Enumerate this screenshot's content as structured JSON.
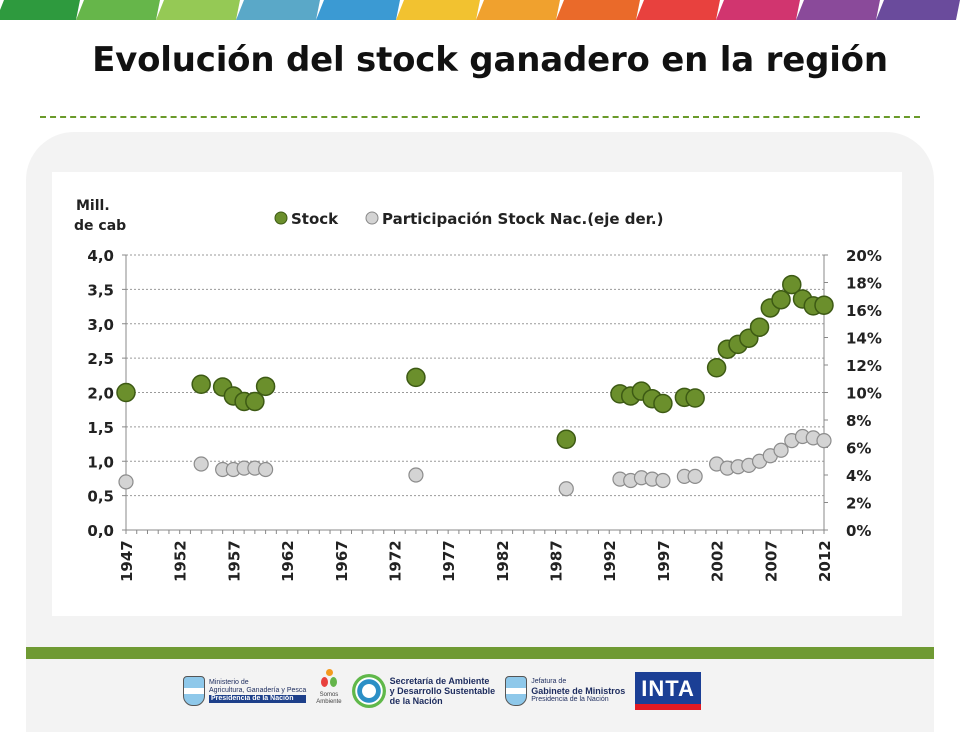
{
  "page": {
    "title": "Evolución del stock ganadero en la región",
    "stripe_colors": [
      "#2e9a3e",
      "#66b64a",
      "#95c955",
      "#5aa8c8",
      "#3b9ad3",
      "#f2c230",
      "#f0a12e",
      "#ea6a2a",
      "#e8413e",
      "#d1356f",
      "#8a4a9a",
      "#6a4b9c"
    ],
    "accent_color": "#6f9a33"
  },
  "footer": {
    "logos": [
      {
        "name": "ministerio",
        "line1": "Ministerio de",
        "line2": "Agricultura, Ganadería y Pesca",
        "line3": "Presidencia de la Nación"
      },
      {
        "name": "somos-ambiente",
        "line1": "Somos",
        "line2": "Ambiente"
      },
      {
        "name": "secretaria",
        "line1": "Secretaría de Ambiente",
        "line2": "y Desarrollo Sustentable",
        "line3": "de la Nación"
      },
      {
        "name": "jefatura",
        "line1": "Jefatura de",
        "line2": "Gabinete de Ministros",
        "line3": "Presidencia de la Nación"
      },
      {
        "name": "inta",
        "line1": "INTA"
      }
    ]
  },
  "chart_data": {
    "type": "scatter",
    "ylabel_line1": "Mill.",
    "ylabel_line2": "de cab",
    "legend_position": "top",
    "grid": true,
    "x_range": [
      1947,
      2012
    ],
    "x_ticks": [
      1947,
      1952,
      1957,
      1962,
      1967,
      1972,
      1977,
      1982,
      1987,
      1992,
      1997,
      2002,
      2007,
      2012
    ],
    "y_left": {
      "range": [
        0,
        4
      ],
      "ticks": [
        "0,0",
        "0,5",
        "1,0",
        "1,5",
        "2,0",
        "2,5",
        "3,0",
        "3,5",
        "4,0"
      ]
    },
    "y_right": {
      "range": [
        0,
        20
      ],
      "ticks": [
        "0%",
        "2%",
        "4%",
        "6%",
        "8%",
        "10%",
        "12%",
        "14%",
        "16%",
        "18%",
        "20%"
      ]
    },
    "series": [
      {
        "name": "Stock",
        "axis": "left",
        "color": "#6b8f2c",
        "points": [
          [
            1947,
            2.0
          ],
          [
            1954,
            2.12
          ],
          [
            1956,
            2.08
          ],
          [
            1957,
            1.95
          ],
          [
            1958,
            1.87
          ],
          [
            1959,
            1.87
          ],
          [
            1960,
            2.09
          ],
          [
            1974,
            2.22
          ],
          [
            1988,
            1.32
          ],
          [
            1993,
            1.98
          ],
          [
            1994,
            1.95
          ],
          [
            1995,
            2.02
          ],
          [
            1996,
            1.91
          ],
          [
            1997,
            1.84
          ],
          [
            1999,
            1.93
          ],
          [
            2000,
            1.92
          ],
          [
            2002,
            2.36
          ],
          [
            2003,
            2.63
          ],
          [
            2004,
            2.7
          ],
          [
            2005,
            2.79
          ],
          [
            2006,
            2.95
          ],
          [
            2007,
            3.23
          ],
          [
            2008,
            3.35
          ],
          [
            2009,
            3.57
          ],
          [
            2010,
            3.36
          ],
          [
            2011,
            3.26
          ],
          [
            2012,
            3.27
          ]
        ]
      },
      {
        "name": "Participación Stock Nac.(eje der.)",
        "axis": "right",
        "color": "#d4d4d4",
        "points": [
          [
            1947,
            3.5
          ],
          [
            1954,
            4.8
          ],
          [
            1956,
            4.4
          ],
          [
            1957,
            4.4
          ],
          [
            1958,
            4.5
          ],
          [
            1959,
            4.5
          ],
          [
            1960,
            4.4
          ],
          [
            1974,
            4.0
          ],
          [
            1988,
            3.0
          ],
          [
            1993,
            3.7
          ],
          [
            1994,
            3.6
          ],
          [
            1995,
            3.8
          ],
          [
            1996,
            3.7
          ],
          [
            1997,
            3.6
          ],
          [
            1999,
            3.9
          ],
          [
            2000,
            3.9
          ],
          [
            2002,
            4.8
          ],
          [
            2003,
            4.5
          ],
          [
            2004,
            4.6
          ],
          [
            2005,
            4.7
          ],
          [
            2006,
            5.0
          ],
          [
            2007,
            5.4
          ],
          [
            2008,
            5.8
          ],
          [
            2009,
            6.5
          ],
          [
            2010,
            6.8
          ],
          [
            2011,
            6.7
          ],
          [
            2012,
            6.5
          ]
        ]
      }
    ]
  }
}
